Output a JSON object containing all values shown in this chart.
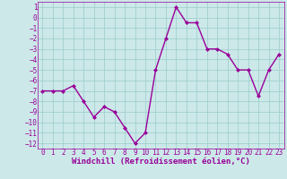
{
  "x": [
    0,
    1,
    2,
    3,
    4,
    5,
    6,
    7,
    8,
    9,
    10,
    11,
    12,
    13,
    14,
    15,
    16,
    17,
    18,
    19,
    20,
    21,
    22,
    23
  ],
  "y": [
    -7,
    -7,
    -7,
    -6.5,
    -8,
    -9.5,
    -8.5,
    -9,
    -10.5,
    -12,
    -11,
    -5,
    -2,
    1,
    -0.5,
    -0.5,
    -3,
    -3,
    -3.5,
    -5,
    -5,
    -7.5,
    -5,
    -3.5
  ],
  "line_color": "#990099",
  "marker": "D",
  "marker_size": 2,
  "bg_color": "#cce8e8",
  "grid_color": "#99cccc",
  "xlabel": "Windchill (Refroidissement éolien,°C)",
  "xlabel_fontsize": 6.5,
  "ylim": [
    -12.5,
    1.5
  ],
  "xlim": [
    -0.5,
    23.5
  ],
  "yticks": [
    1,
    0,
    -1,
    -2,
    -3,
    -4,
    -5,
    -6,
    -7,
    -8,
    -9,
    -10,
    -11,
    -12
  ],
  "xticks": [
    0,
    1,
    2,
    3,
    4,
    5,
    6,
    7,
    8,
    9,
    10,
    11,
    12,
    13,
    14,
    15,
    16,
    17,
    18,
    19,
    20,
    21,
    22,
    23
  ],
  "tick_fontsize": 5.5,
  "linewidth": 1.0
}
